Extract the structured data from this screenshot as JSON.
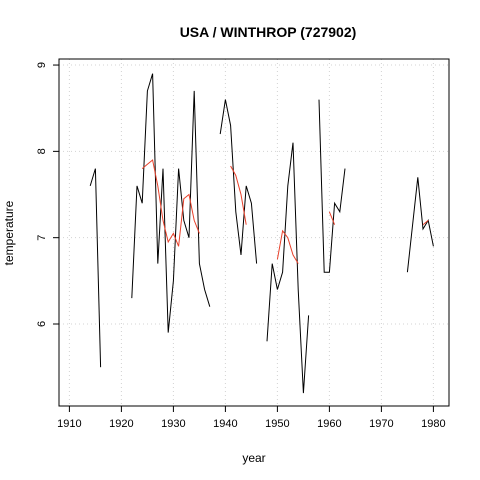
{
  "chart_data": {
    "type": "line",
    "title": "USA / WINTHROP (727902)",
    "xlabel": "year",
    "ylabel": "temperature",
    "xlim": [
      1908,
      1983
    ],
    "ylim": [
      5.05,
      9.07
    ],
    "x_ticks": [
      1910,
      1920,
      1930,
      1940,
      1950,
      1960,
      1970,
      1980
    ],
    "y_ticks": [
      6,
      7,
      8,
      9
    ],
    "grid": true,
    "colors": {
      "raw": "#000000",
      "smooth": "#e8402a",
      "grid": "#d3d3d3"
    },
    "series": [
      {
        "style": "raw",
        "segments": [
          [
            [
              1914,
              7.6
            ],
            [
              1915,
              7.8
            ],
            [
              1916,
              5.5
            ]
          ],
          [
            [
              1922,
              6.3
            ],
            [
              1923,
              7.6
            ],
            [
              1924,
              7.4
            ],
            [
              1925,
              8.7
            ],
            [
              1926,
              8.9
            ],
            [
              1927,
              6.7
            ],
            [
              1928,
              7.8
            ],
            [
              1929,
              5.9
            ],
            [
              1930,
              6.5
            ],
            [
              1931,
              7.8
            ],
            [
              1932,
              7.2
            ],
            [
              1933,
              7.0
            ],
            [
              1934,
              8.7
            ],
            [
              1935,
              6.7
            ],
            [
              1936,
              6.4
            ],
            [
              1937,
              6.2
            ]
          ],
          [
            [
              1939,
              8.2
            ],
            [
              1940,
              8.6
            ],
            [
              1941,
              8.3
            ],
            [
              1942,
              7.3
            ],
            [
              1943,
              6.8
            ],
            [
              1944,
              7.6
            ],
            [
              1945,
              7.4
            ],
            [
              1946,
              6.7
            ]
          ],
          [
            [
              1948,
              5.8
            ],
            [
              1949,
              6.7
            ],
            [
              1950,
              6.4
            ],
            [
              1951,
              6.6
            ],
            [
              1952,
              7.6
            ],
            [
              1953,
              8.1
            ],
            [
              1954,
              6.4
            ],
            [
              1955,
              5.2
            ],
            [
              1956,
              6.1
            ]
          ],
          [
            [
              1958,
              8.6
            ],
            [
              1959,
              6.6
            ],
            [
              1960,
              6.6
            ],
            [
              1961,
              7.4
            ],
            [
              1962,
              7.3
            ],
            [
              1963,
              7.8
            ]
          ],
          [
            [
              1975,
              6.6
            ],
            [
              1977,
              7.7
            ],
            [
              1978,
              7.1
            ],
            [
              1979,
              7.2
            ],
            [
              1980,
              6.9
            ]
          ]
        ]
      },
      {
        "style": "smooth",
        "segments": [
          [
            [
              1924,
              7.8
            ],
            [
              1925,
              7.85
            ],
            [
              1926,
              7.9
            ],
            [
              1927,
              7.6
            ],
            [
              1928,
              7.2
            ],
            [
              1929,
              6.95
            ],
            [
              1930,
              7.05
            ],
            [
              1931,
              6.9
            ],
            [
              1932,
              7.45
            ],
            [
              1933,
              7.5
            ],
            [
              1934,
              7.2
            ],
            [
              1935,
              7.05
            ]
          ],
          [
            [
              1941,
              7.83
            ],
            [
              1942,
              7.72
            ],
            [
              1943,
              7.5
            ],
            [
              1944,
              7.15
            ]
          ],
          [
            [
              1950,
              6.75
            ],
            [
              1951,
              7.08
            ],
            [
              1952,
              7.0
            ],
            [
              1953,
              6.8
            ],
            [
              1954,
              6.7
            ]
          ],
          [
            [
              1960,
              7.3
            ],
            [
              1961,
              7.15
            ]
          ],
          [
            [
              1978,
              7.15
            ],
            [
              1979,
              7.2
            ]
          ]
        ]
      }
    ]
  }
}
